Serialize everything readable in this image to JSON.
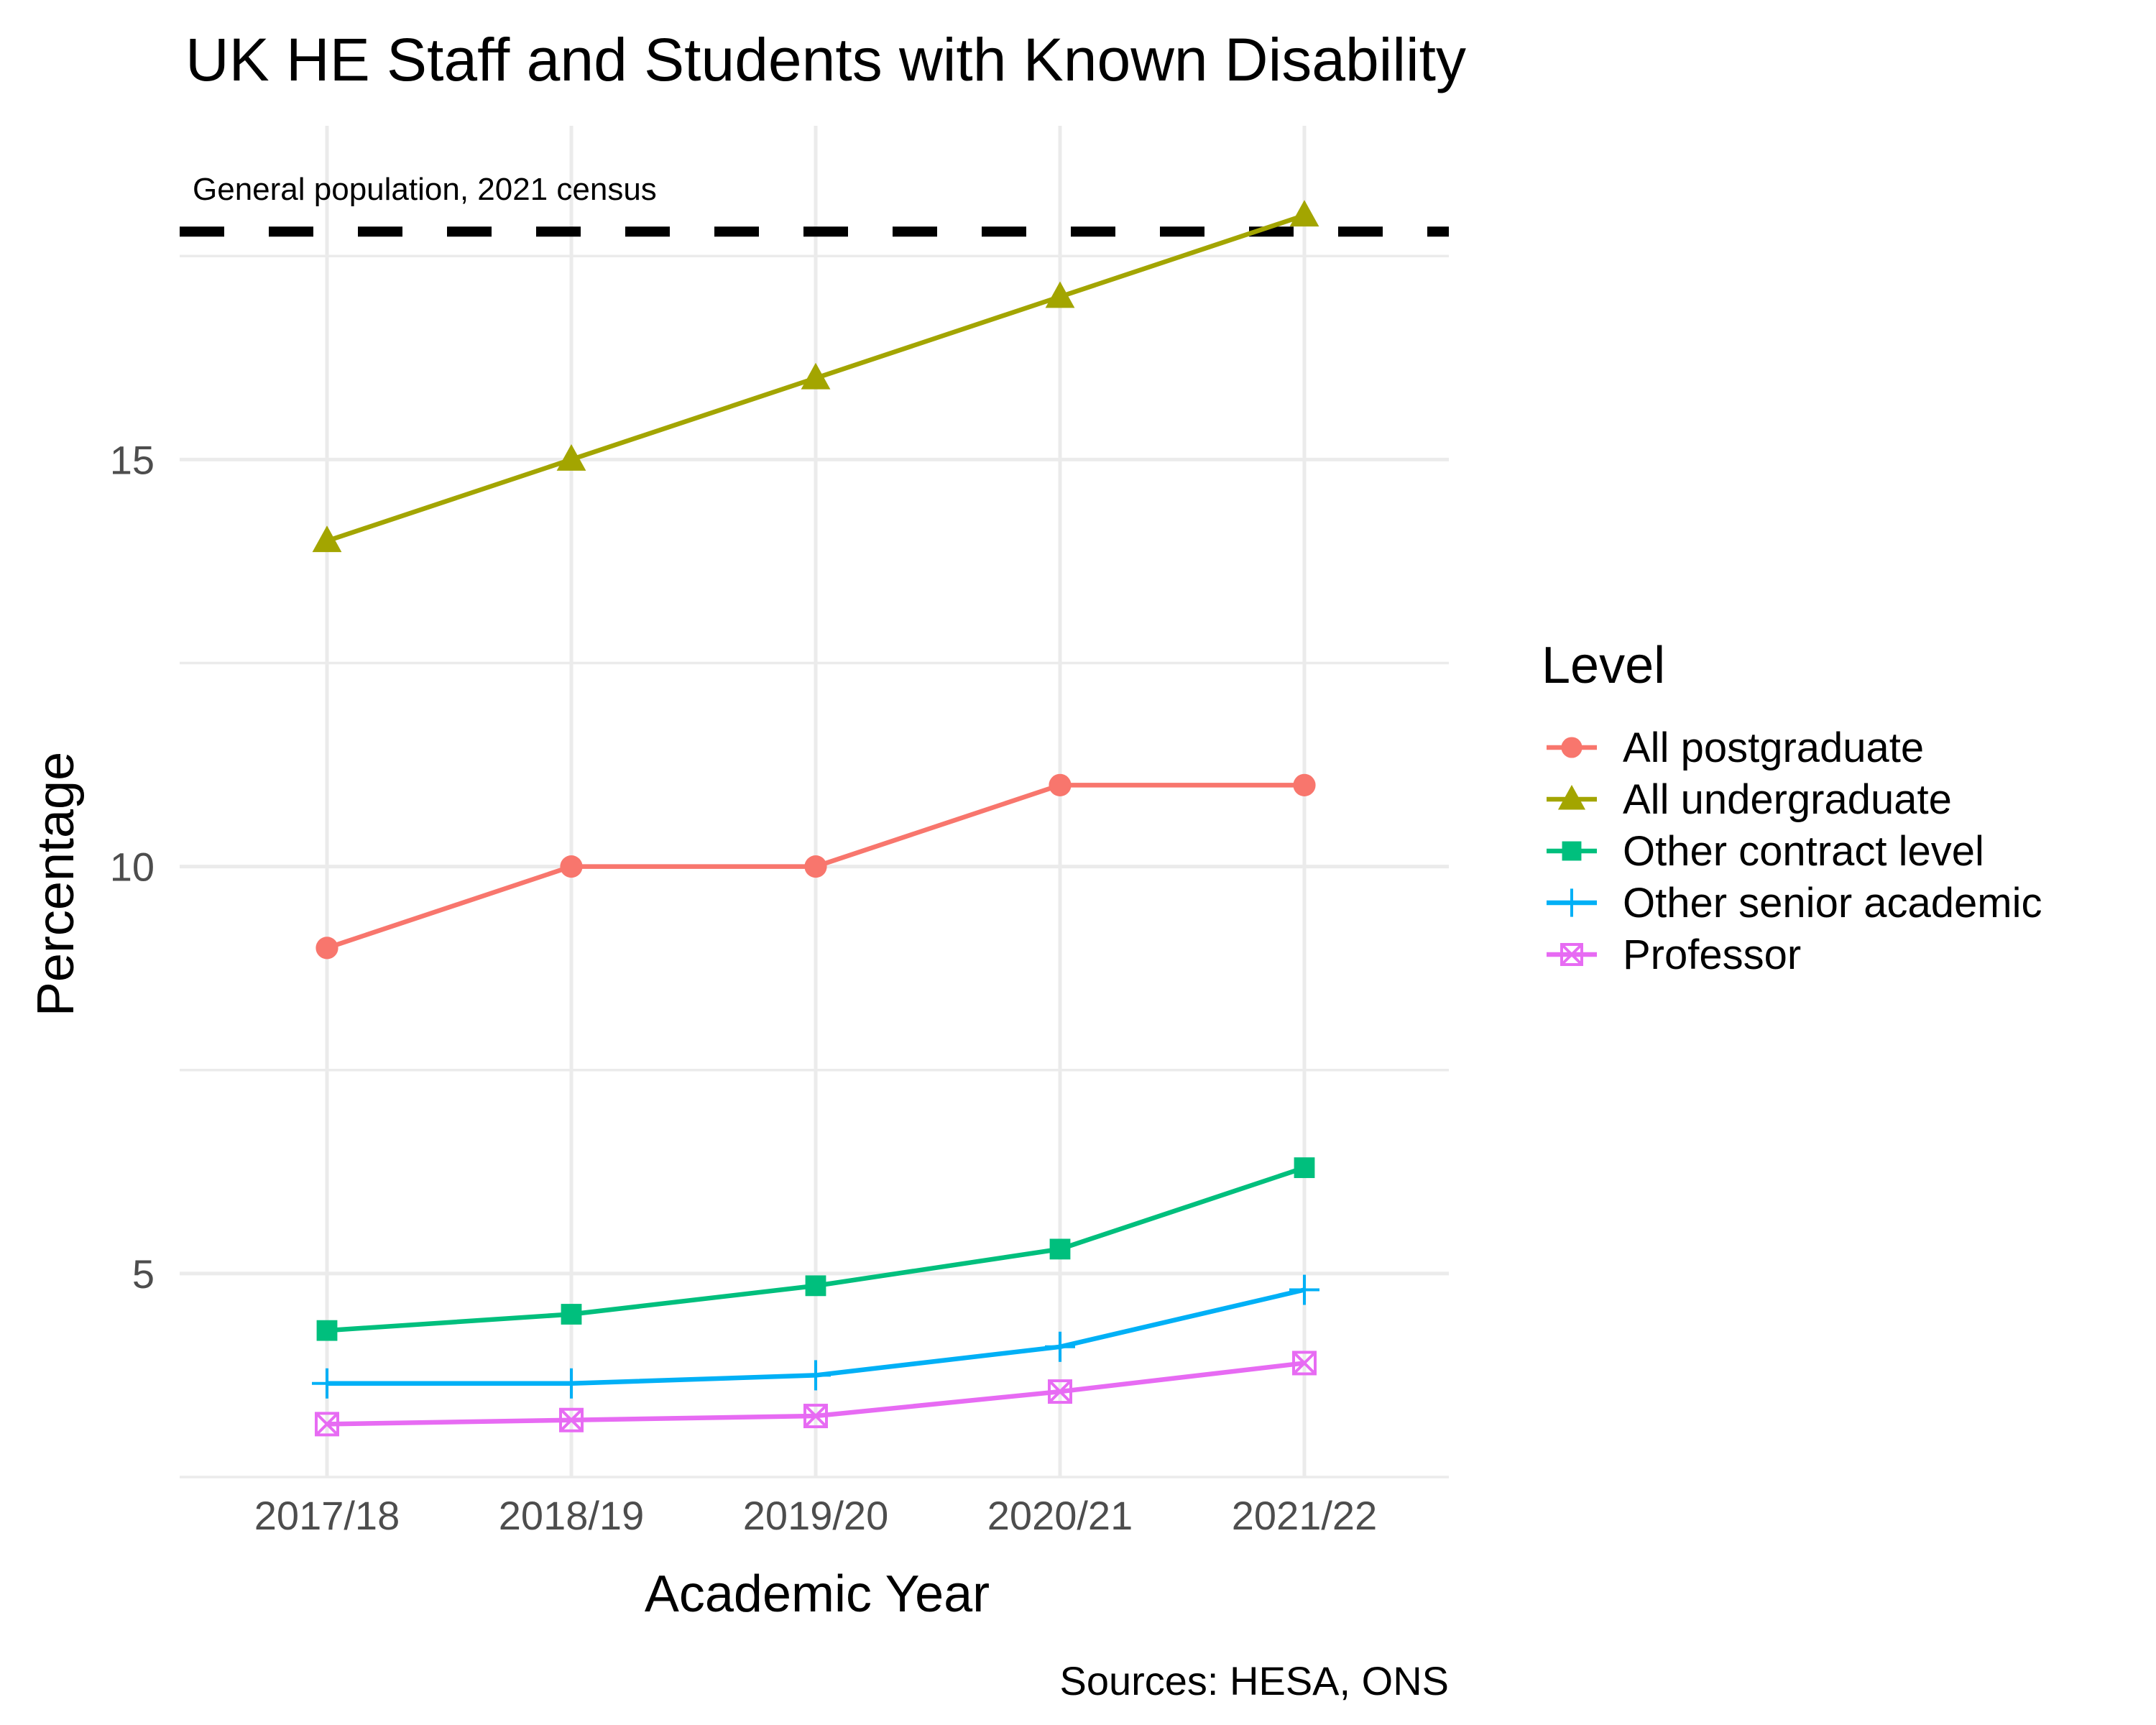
{
  "chart_data": {
    "type": "line",
    "title": "UK HE Staff and Students with Known Disability",
    "xlabel": "Academic Year",
    "ylabel": "Percentage",
    "caption": "Sources: HESA, ONS",
    "categories": [
      "2017/18",
      "2018/19",
      "2019/20",
      "2020/21",
      "2021/22"
    ],
    "y_ticks": [
      "5",
      "10",
      "15"
    ],
    "ylim": [
      2.5,
      19.1
    ],
    "grid": true,
    "legend": {
      "title": "Level",
      "position": "right"
    },
    "reference_line": {
      "label": "General population, 2021 census",
      "value": 17.8,
      "style": "dashed"
    },
    "series": [
      {
        "name": "All postgraduate",
        "values": [
          9.0,
          10.0,
          10.0,
          11.0,
          11.0
        ],
        "color": "#F8766D",
        "marker": "circle"
      },
      {
        "name": "All undergraduate",
        "values": [
          14.0,
          15.0,
          16.0,
          17.0,
          18.0
        ],
        "color": "#A3A500",
        "marker": "triangle"
      },
      {
        "name": "Other contract level",
        "values": [
          4.3,
          4.5,
          4.85,
          5.3,
          6.3
        ],
        "color": "#00BF7D",
        "marker": "square"
      },
      {
        "name": "Other senior academic",
        "values": [
          3.65,
          3.65,
          3.75,
          4.1,
          4.8
        ],
        "color": "#00B0F6",
        "marker": "plus"
      },
      {
        "name": "Professor",
        "values": [
          3.15,
          3.2,
          3.25,
          3.55,
          3.9
        ],
        "color": "#E76BF3",
        "marker": "square-cross"
      }
    ]
  }
}
